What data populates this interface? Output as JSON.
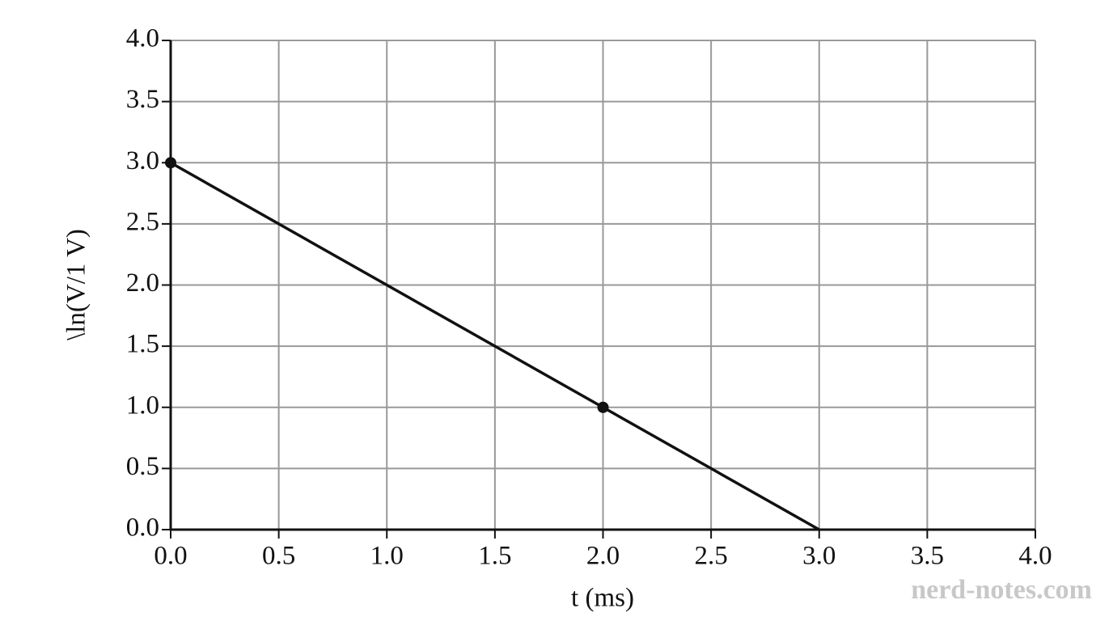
{
  "chart_data": {
    "type": "line",
    "xlabel": "t (ms)",
    "ylabel": "\\ln(V/1 V)",
    "watermark": "nerd-notes.com",
    "xlim": [
      0,
      4
    ],
    "ylim": [
      0,
      4
    ],
    "xticks": [
      {
        "value": 0,
        "label": "0.0"
      },
      0.5,
      {
        "value": 1,
        "label": "1.0"
      },
      1.5,
      {
        "value": 2,
        "label": "2.0"
      },
      2.5,
      {
        "value": 3,
        "label": "3.0"
      },
      3.5,
      {
        "value": 4,
        "label": "4.0"
      }
    ],
    "yticks": [
      {
        "value": 0,
        "label": "0.0"
      },
      0.5,
      {
        "value": 1,
        "label": "1.0"
      },
      1.5,
      {
        "value": 2,
        "label": "2.0"
      },
      2.5,
      {
        "value": 3,
        "label": "3.0"
      },
      3.5,
      {
        "value": 4,
        "label": "4.0"
      }
    ],
    "grid": true,
    "series": [
      {
        "color": "#111111",
        "x": [
          0,
          3
        ],
        "values": [
          3,
          0
        ],
        "marker": false
      },
      {
        "color": "#111111",
        "x": [
          0,
          2
        ],
        "values": [
          3,
          1
        ],
        "marker": true
      }
    ]
  }
}
